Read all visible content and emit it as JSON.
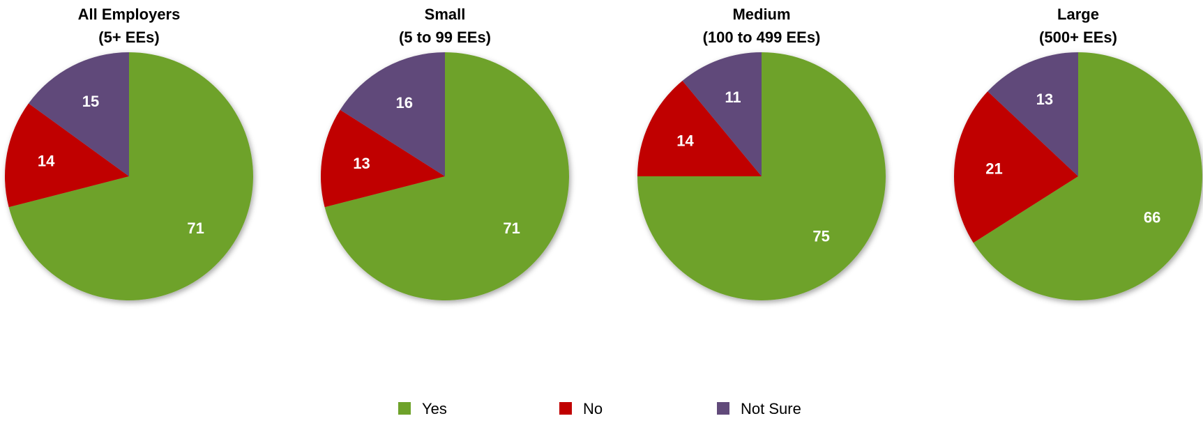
{
  "chart_data": {
    "type": "pie",
    "legend": {
      "placement": "bottom",
      "entries": [
        {
          "label": "Yes",
          "color": "#6ea22a"
        },
        {
          "label": "No",
          "color": "#c00000"
        },
        {
          "label": "Not Sure",
          "color": "#614a7a"
        }
      ]
    },
    "pies": [
      {
        "title": [
          "All Employers",
          "(5+ EEs)"
        ],
        "slices": [
          {
            "label": "Yes",
            "value": 71
          },
          {
            "label": "No",
            "value": 14
          },
          {
            "label": "Not Sure",
            "value": 15
          }
        ]
      },
      {
        "title": [
          "Small",
          "(5 to 99 EEs)"
        ],
        "slices": [
          {
            "label": "Yes",
            "value": 71
          },
          {
            "label": "No",
            "value": 13
          },
          {
            "label": "Not Sure",
            "value": 16
          }
        ]
      },
      {
        "title": [
          "Medium",
          "(100 to 499 EEs)"
        ],
        "slices": [
          {
            "label": "Yes",
            "value": 75
          },
          {
            "label": "No",
            "value": 14
          },
          {
            "label": "Not Sure",
            "value": 11
          }
        ]
      },
      {
        "title": [
          "Large",
          "(500+ EEs)"
        ],
        "slices": [
          {
            "label": "Yes",
            "value": 66
          },
          {
            "label": "No",
            "value": 21
          },
          {
            "label": "Not Sure",
            "value": 13
          }
        ]
      }
    ]
  }
}
